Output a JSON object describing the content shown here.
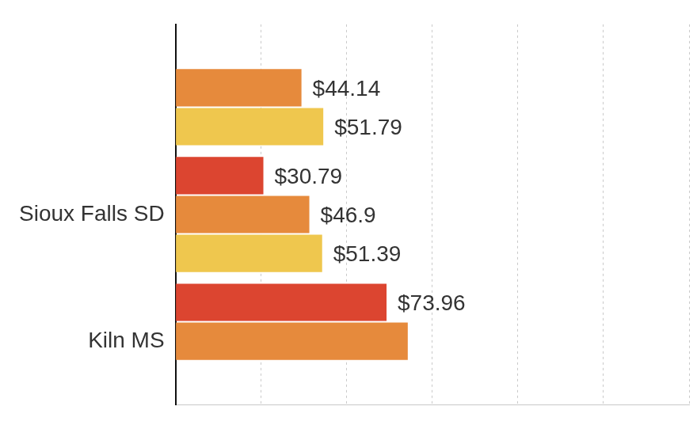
{
  "chart_data": {
    "type": "bar",
    "orientation": "horizontal",
    "categories": [
      null,
      "Sioux Falls SD",
      "Kiln MS"
    ],
    "series": [
      {
        "color": "#dc4530",
        "values": [
          null,
          30.79,
          73.96
        ],
        "value_labels": [
          null,
          "$30.79",
          "$73.96"
        ]
      },
      {
        "color": "#e68a3c",
        "values": [
          44.14,
          46.9,
          81.4
        ],
        "value_labels": [
          "$44.14",
          "$46.9",
          null
        ]
      },
      {
        "color": "#efc74e",
        "values": [
          51.79,
          51.39,
          null
        ],
        "value_labels": [
          "$51.79",
          "$51.39",
          null
        ]
      }
    ],
    "xlim": [
      0,
      180
    ],
    "xticks": [
      0,
      30,
      60,
      90,
      120,
      150,
      180
    ],
    "grid": true,
    "data_labels": true,
    "tick_labels": "y"
  }
}
